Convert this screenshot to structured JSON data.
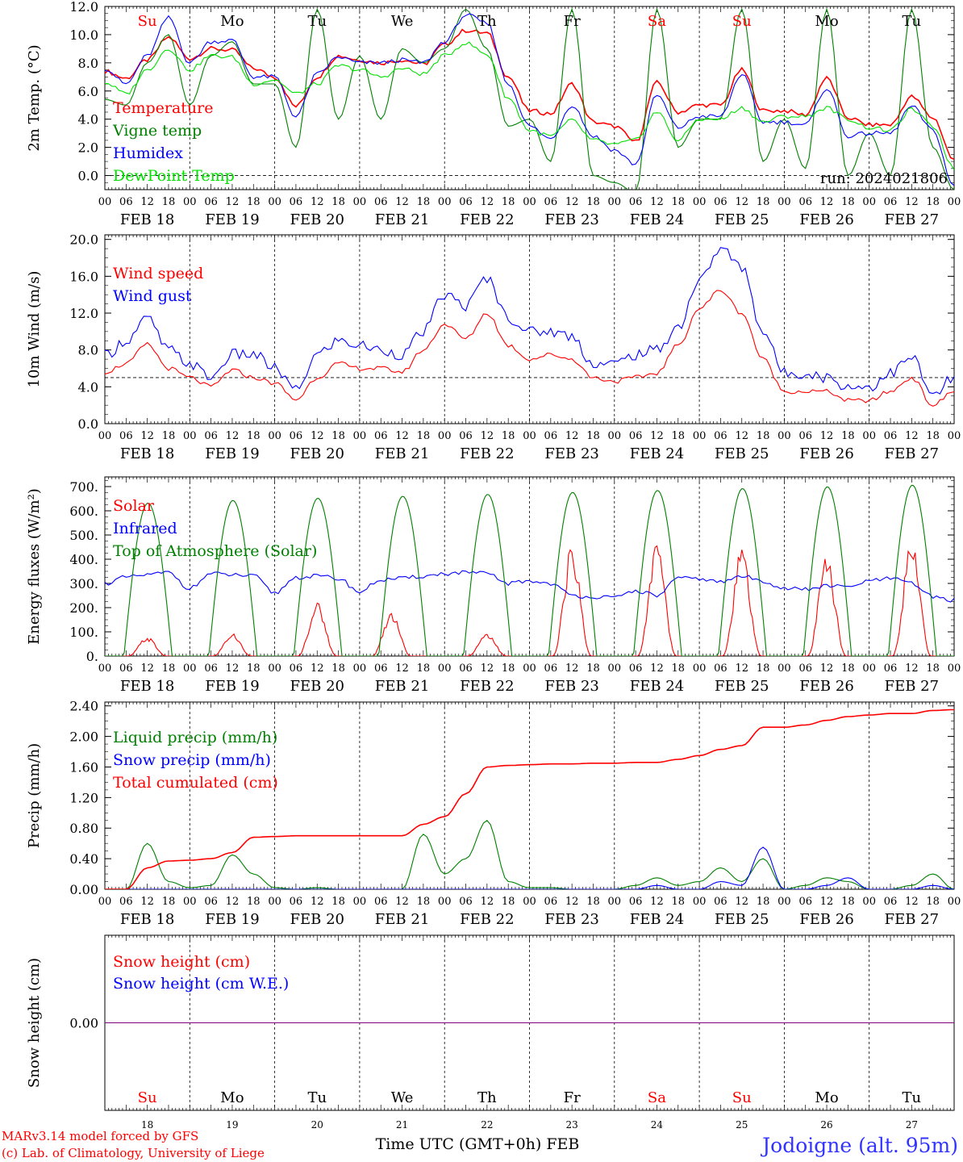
{
  "footer": {
    "credit_line1": "MARv3.14 model forced by GFS",
    "credit_line2": "(c) Lab. of Climatology, University of Liege",
    "xlabel": "Time UTC (GMT+0h) FEB",
    "station": "Jodoigne (alt. 95m)"
  },
  "colors": {
    "red": "#ff0000",
    "blue": "#0000ff",
    "green": "#008000",
    "lightgreen": "#00e000",
    "purple": "#800080",
    "station": "#3333ff"
  },
  "day_names": [
    "Su",
    "Mo",
    "Tu",
    "We",
    "Th",
    "Fr",
    "Sa",
    "Su",
    "Mo",
    "Tu"
  ],
  "day_name_colors": [
    "red",
    "black",
    "black",
    "black",
    "black",
    "black",
    "red",
    "red",
    "black",
    "black"
  ],
  "date_labels": [
    "FEB 18",
    "FEB 19",
    "FEB 20",
    "FEB 21",
    "FEB 22",
    "FEB 23",
    "FEB 24",
    "FEB 25",
    "FEB 26",
    "FEB 27"
  ],
  "day_numbers": [
    "18",
    "19",
    "20",
    "21",
    "22",
    "23",
    "24",
    "25",
    "26",
    "27"
  ],
  "hour_ticks": [
    "00",
    "06",
    "12",
    "18"
  ],
  "final_tick": "00",
  "chart_data": [
    {
      "type": "line",
      "ylabel": "2m Temp. (°C)",
      "ylim": [
        -1.0,
        12.0
      ],
      "yticks": [
        "12.0",
        "10.0",
        "8.0",
        "6.0",
        "4.0",
        "2.0",
        "0.0"
      ],
      "ytick_values": [
        12,
        10,
        8,
        6,
        4,
        2,
        0
      ],
      "dashed_ref": 0,
      "annotation": "run: 2024021806",
      "x_hours_from_feb18_00": [
        0,
        6,
        12,
        18,
        24,
        30,
        36,
        42,
        48,
        54,
        60,
        66,
        72,
        78,
        84,
        90,
        96,
        102,
        108,
        114,
        120,
        126,
        132,
        138,
        144,
        150,
        156,
        162,
        168,
        174,
        180,
        186,
        192,
        198,
        204,
        210,
        216,
        222,
        228,
        234,
        240
      ],
      "series": [
        {
          "name": "Temperature",
          "color": "red",
          "values": [
            7.4,
            6.9,
            8.2,
            9.8,
            8.3,
            9.0,
            8.9,
            7.6,
            7.0,
            4.9,
            7.0,
            8.5,
            8.2,
            8.0,
            8.2,
            7.9,
            9.3,
            10.3,
            10.1,
            7.0,
            4.6,
            4.4,
            6.5,
            3.8,
            3.5,
            2.4,
            6.6,
            4.5,
            5.0,
            5.0,
            7.5,
            4.6,
            4.6,
            4.3,
            6.9,
            4.1,
            3.6,
            3.6,
            5.6,
            4.1,
            1.1
          ]
        },
        {
          "name": "Vigne temp",
          "color": "green",
          "values": [
            5.4,
            5.0,
            8.0,
            10.0,
            5.0,
            8.5,
            9.5,
            6.5,
            6.5,
            2.0,
            11.8,
            4.0,
            8.5,
            4.0,
            9.0,
            8.0,
            9.0,
            11.8,
            9.0,
            3.5,
            4.0,
            1.0,
            11.8,
            0.0,
            -0.5,
            -1.2,
            11.8,
            2.0,
            4.0,
            4.0,
            11.8,
            1.0,
            4.0,
            0.5,
            11.8,
            0.0,
            3.0,
            0.0,
            11.8,
            2.0,
            -1.0
          ]
        },
        {
          "name": "Humidex",
          "color": "blue",
          "values": [
            7.6,
            6.5,
            8.5,
            11.2,
            8.0,
            9.5,
            9.6,
            7.0,
            7.0,
            4.2,
            7.2,
            8.4,
            8.0,
            8.0,
            8.2,
            8.0,
            9.5,
            11.4,
            10.8,
            6.5,
            3.5,
            2.6,
            5.0,
            2.8,
            1.8,
            0.8,
            5.7,
            3.4,
            4.2,
            4.2,
            7.2,
            3.8,
            3.8,
            3.6,
            6.2,
            2.8,
            3.0,
            3.0,
            4.9,
            3.2,
            -0.8
          ]
        },
        {
          "name": "DewPoint Temp",
          "color": "lightgreen",
          "values": [
            6.6,
            5.8,
            7.5,
            9.0,
            7.5,
            8.5,
            8.4,
            6.5,
            6.8,
            5.8,
            6.5,
            7.8,
            7.5,
            7.0,
            7.6,
            7.2,
            8.5,
            9.4,
            8.6,
            5.5,
            3.2,
            2.8,
            3.9,
            2.5,
            2.2,
            2.5,
            4.5,
            2.5,
            4.0,
            4.0,
            4.8,
            3.8,
            4.2,
            4.2,
            4.8,
            4.0,
            3.4,
            3.2,
            4.7,
            3.5,
            0.5
          ]
        }
      ]
    },
    {
      "type": "line",
      "ylabel": "10m Wind (m/s)",
      "ylim": [
        0,
        20.0
      ],
      "yticks": [
        "20.0",
        "16.0",
        "12.0",
        "8.0",
        "4.0",
        "0.0"
      ],
      "ytick_values": [
        20,
        16,
        12,
        8,
        4,
        0
      ],
      "dashed_ref": 5,
      "x_hours_from_feb18_00": [
        0,
        6,
        12,
        18,
        24,
        30,
        36,
        42,
        48,
        54,
        60,
        66,
        72,
        78,
        84,
        90,
        96,
        102,
        108,
        114,
        120,
        126,
        132,
        138,
        144,
        150,
        156,
        162,
        168,
        174,
        180,
        186,
        192,
        198,
        204,
        210,
        216,
        222,
        228,
        234,
        240
      ],
      "series": [
        {
          "name": "Wind speed",
          "color": "red",
          "values": [
            5.6,
            6.5,
            8.6,
            6.0,
            5.0,
            4.0,
            5.8,
            5.0,
            4.4,
            2.6,
            5.0,
            6.5,
            6.0,
            6.0,
            5.6,
            8.0,
            10.8,
            9.2,
            12.0,
            8.5,
            7.0,
            7.5,
            7.0,
            5.0,
            4.6,
            5.0,
            5.5,
            8.5,
            12.5,
            14.5,
            12.0,
            7.0,
            3.5,
            3.5,
            3.5,
            2.5,
            2.5,
            3.5,
            5.0,
            2.0,
            3.5
          ]
        },
        {
          "name": "Wind gust",
          "color": "blue",
          "values": [
            7.4,
            9.0,
            11.4,
            8.0,
            6.5,
            5.0,
            7.5,
            7.5,
            6.0,
            3.6,
            7.5,
            9.0,
            8.5,
            8.0,
            7.5,
            10.0,
            14.0,
            12.8,
            15.8,
            11.5,
            10.0,
            10.0,
            9.5,
            6.5,
            6.5,
            7.5,
            8.0,
            10.5,
            15.5,
            19.0,
            17.0,
            10.0,
            5.5,
            5.5,
            5.0,
            4.0,
            4.0,
            5.5,
            7.2,
            3.0,
            5.0
          ]
        }
      ]
    },
    {
      "type": "line",
      "ylabel": "Energy fluxes (W/m²)",
      "ylim": [
        0,
        750
      ],
      "yticks": [
        "700.",
        "600.",
        "500.",
        "400.",
        "300.",
        "200.",
        "100.",
        "0."
      ],
      "ytick_values": [
        700,
        600,
        500,
        400,
        300,
        200,
        100,
        0
      ],
      "x_hours_from_feb18_00": [
        0,
        6,
        12,
        18,
        24,
        30,
        36,
        42,
        48,
        54,
        60,
        66,
        72,
        78,
        84,
        90,
        96,
        102,
        108,
        114,
        120,
        126,
        132,
        138,
        144,
        150,
        156,
        162,
        168,
        174,
        180,
        186,
        192,
        198,
        204,
        210,
        216,
        222,
        228,
        234,
        240
      ],
      "series": [
        {
          "name": "Solar",
          "color": "red",
          "peaks": [
            {
              "center": 12,
              "value": 80
            },
            {
              "center": 36,
              "value": 95
            },
            {
              "center": 60,
              "value": 225
            },
            {
              "center": 81,
              "value": 190
            },
            {
              "center": 108,
              "value": 100
            },
            {
              "center": 132,
              "value": 460
            },
            {
              "center": 156,
              "value": 475
            },
            {
              "center": 180,
              "value": 450
            },
            {
              "center": 204,
              "value": 415
            },
            {
              "center": 228,
              "value": 490
            }
          ]
        },
        {
          "name": "Infrared",
          "color": "blue",
          "values": [
            300,
            325,
            335,
            345,
            280,
            340,
            335,
            330,
            260,
            325,
            330,
            320,
            265,
            315,
            320,
            330,
            340,
            345,
            340,
            300,
            310,
            300,
            250,
            245,
            240,
            270,
            250,
            320,
            320,
            305,
            330,
            310,
            280,
            275,
            290,
            285,
            310,
            320,
            300,
            245,
            230
          ]
        },
        {
          "name": "Top of Atmosphere (Solar)",
          "color": "green",
          "peaks": [
            {
              "center": 12.2,
              "value": 632
            },
            {
              "center": 36.2,
              "value": 643
            },
            {
              "center": 60.2,
              "value": 652
            },
            {
              "center": 84.2,
              "value": 660
            },
            {
              "center": 108.2,
              "value": 668
            },
            {
              "center": 132.2,
              "value": 676
            },
            {
              "center": 156.2,
              "value": 684
            },
            {
              "center": 180.2,
              "value": 692
            },
            {
              "center": 204.2,
              "value": 699
            },
            {
              "center": 228.2,
              "value": 706
            }
          ]
        }
      ]
    },
    {
      "type": "line",
      "ylabel": "Precip (mm/h)",
      "ylim": [
        0,
        2.4
      ],
      "yticks": [
        "2.40",
        "2.00",
        "1.60",
        "1.20",
        "0.80",
        "0.40",
        "0.00"
      ],
      "ytick_values": [
        2.4,
        2.0,
        1.6,
        1.2,
        0.8,
        0.4,
        0.0
      ],
      "x_hours_from_feb18_00": [
        0,
        6,
        12,
        18,
        24,
        30,
        36,
        42,
        48,
        54,
        60,
        66,
        72,
        78,
        84,
        90,
        96,
        102,
        108,
        114,
        120,
        126,
        132,
        138,
        144,
        150,
        156,
        162,
        168,
        174,
        180,
        186,
        192,
        198,
        204,
        210,
        216,
        222,
        228,
        234,
        240
      ],
      "series": [
        {
          "name": "Liquid precip (mm/h)",
          "color": "green",
          "values": [
            0,
            0,
            0.6,
            0.1,
            0.02,
            0.05,
            0.45,
            0.2,
            0.02,
            0.0,
            0.02,
            0.0,
            0.0,
            0.0,
            0.0,
            0.72,
            0.2,
            0.4,
            0.9,
            0.1,
            0.02,
            0.02,
            0.0,
            0.0,
            0.0,
            0.05,
            0.15,
            0.05,
            0.1,
            0.28,
            0.1,
            0.4,
            0.0,
            0.05,
            0.15,
            0.1,
            0.0,
            0.0,
            0.05,
            0.2,
            0.0
          ]
        },
        {
          "name": "Snow precip (mm/h)",
          "color": "blue",
          "values": [
            0,
            0,
            0,
            0,
            0,
            0,
            0,
            0,
            0,
            0,
            0,
            0,
            0,
            0,
            0,
            0,
            0,
            0,
            0,
            0,
            0,
            0,
            0,
            0,
            0,
            0,
            0.05,
            0,
            0,
            0.1,
            0.05,
            0.55,
            0,
            0,
            0.05,
            0.15,
            0,
            0,
            0,
            0.05,
            0
          ]
        },
        {
          "name": "Total cumulated (cm)",
          "color": "red",
          "values": [
            0,
            0,
            0.28,
            0.37,
            0.38,
            0.4,
            0.48,
            0.68,
            0.69,
            0.7,
            0.7,
            0.7,
            0.7,
            0.7,
            0.7,
            0.85,
            0.95,
            1.25,
            1.6,
            1.62,
            1.63,
            1.64,
            1.64,
            1.65,
            1.65,
            1.66,
            1.66,
            1.7,
            1.75,
            1.83,
            1.88,
            2.12,
            2.12,
            2.15,
            2.21,
            2.26,
            2.28,
            2.3,
            2.3,
            2.34,
            2.35
          ]
        }
      ]
    },
    {
      "type": "line",
      "ylabel": "Snow height (cm)",
      "yticks": [
        "0.00"
      ],
      "ytick_values": [
        0
      ],
      "series": [
        {
          "name": "Snow height (cm)",
          "color": "red",
          "values": [
            0,
            0
          ]
        },
        {
          "name": "Snow height (cm W.E.)",
          "color": "blue",
          "values": [
            0,
            0
          ]
        }
      ]
    }
  ]
}
